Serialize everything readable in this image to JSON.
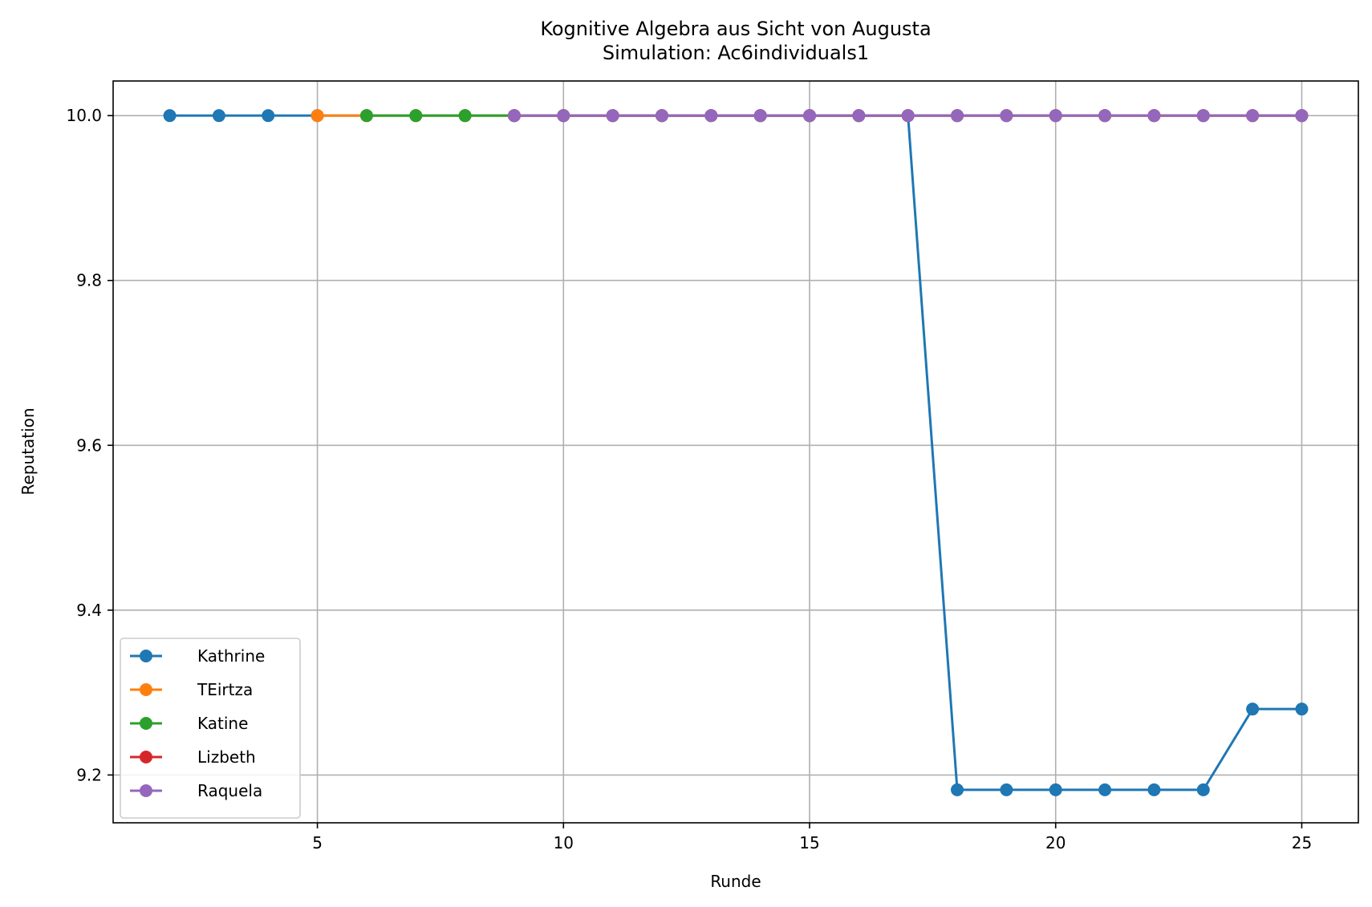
{
  "chart_data": {
    "type": "line",
    "title": "Kognitive Algebra aus Sicht von Augusta",
    "subtitle": "Simulation: Ac6individuals1",
    "xlabel": "Runde",
    "ylabel": "Reputation",
    "xlim": [
      0.85,
      26.15
    ],
    "ylim": [
      9.142,
      10.042
    ],
    "xticks": [
      5,
      10,
      15,
      20,
      25
    ],
    "xtick_labels": [
      "5",
      "10",
      "15",
      "20",
      "25"
    ],
    "yticks": [
      9.2,
      9.4,
      9.6,
      9.8,
      10.0
    ],
    "ytick_labels": [
      "9.2",
      "9.4",
      "9.6",
      "9.8",
      "10.0"
    ],
    "grid": true,
    "legend_position": "lower-left",
    "series": [
      {
        "name": "Kathrine",
        "color": "#1f77b4",
        "x": [
          2,
          3,
          4,
          5,
          6,
          7,
          8,
          9,
          10,
          11,
          12,
          13,
          14,
          15,
          16,
          17,
          18,
          19,
          20,
          21,
          22,
          23,
          24,
          25
        ],
        "y": [
          10.0,
          10.0,
          10.0,
          10.0,
          10.0,
          10.0,
          10.0,
          10.0,
          10.0,
          10.0,
          10.0,
          10.0,
          10.0,
          10.0,
          10.0,
          10.0,
          9.182,
          9.182,
          9.182,
          9.182,
          9.182,
          9.182,
          9.28,
          9.28
        ]
      },
      {
        "name": "TEirtza",
        "color": "#ff7f0e",
        "x": [
          5,
          6,
          7,
          8,
          9,
          10,
          11,
          12,
          13,
          14,
          15,
          16,
          17,
          18,
          19,
          20,
          21,
          22,
          23,
          24,
          25
        ],
        "y": [
          10.0,
          10.0,
          10.0,
          10.0,
          10.0,
          10.0,
          10.0,
          10.0,
          10.0,
          10.0,
          10.0,
          10.0,
          10.0,
          10.0,
          10.0,
          10.0,
          10.0,
          10.0,
          10.0,
          10.0,
          10.0
        ]
      },
      {
        "name": "Katine",
        "color": "#2ca02c",
        "x": [
          6,
          7,
          8,
          9,
          10,
          11,
          12,
          13,
          14,
          15,
          16,
          17,
          18,
          19,
          20,
          21,
          22,
          23,
          24,
          25
        ],
        "y": [
          10.0,
          10.0,
          10.0,
          10.0,
          10.0,
          10.0,
          10.0,
          10.0,
          10.0,
          10.0,
          10.0,
          10.0,
          10.0,
          10.0,
          10.0,
          10.0,
          10.0,
          10.0,
          10.0,
          10.0
        ]
      },
      {
        "name": "Lizbeth",
        "color": "#d62728",
        "x": [
          9,
          10,
          11,
          12,
          13,
          14,
          15,
          16,
          17,
          18,
          19,
          20,
          21,
          22,
          23,
          24,
          25
        ],
        "y": [
          10.0,
          10.0,
          10.0,
          10.0,
          10.0,
          10.0,
          10.0,
          10.0,
          10.0,
          10.0,
          10.0,
          10.0,
          10.0,
          10.0,
          10.0,
          10.0,
          10.0
        ]
      },
      {
        "name": "Raquela",
        "color": "#9467bd",
        "x": [
          9,
          10,
          11,
          12,
          13,
          14,
          15,
          16,
          17,
          18,
          19,
          20,
          21,
          22,
          23,
          24,
          25
        ],
        "y": [
          10.0,
          10.0,
          10.0,
          10.0,
          10.0,
          10.0,
          10.0,
          10.0,
          10.0,
          10.0,
          10.0,
          10.0,
          10.0,
          10.0,
          10.0,
          10.0,
          10.0
        ]
      }
    ]
  }
}
